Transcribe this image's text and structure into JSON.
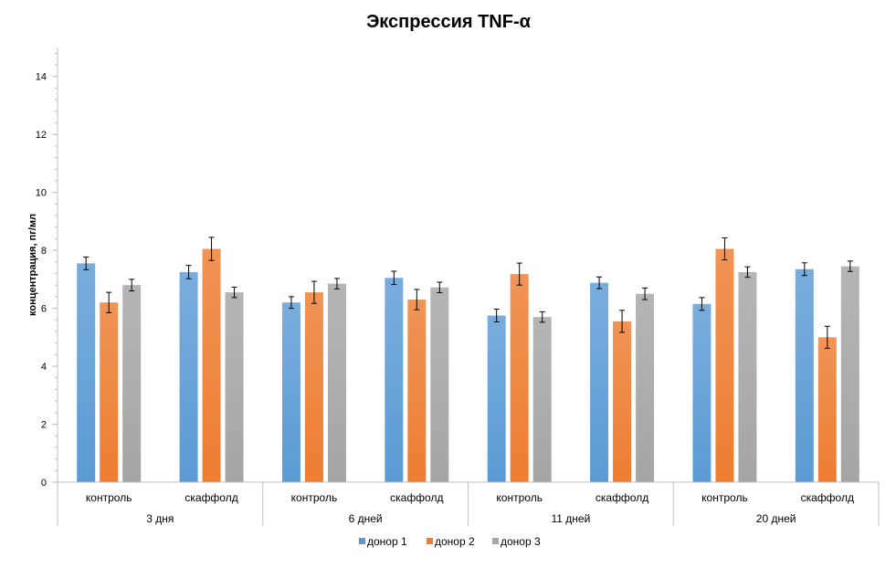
{
  "chart_data": {
    "type": "bar",
    "title": "Экспрессия TNF-α",
    "xlabel": "",
    "ylabel": "концентрация, пг/мл",
    "ylim": [
      0,
      15
    ],
    "yticks": [
      0,
      2,
      4,
      6,
      8,
      10,
      12,
      14
    ],
    "groups": [
      "3 дня",
      "6 дней",
      "11 дней",
      "20 дней"
    ],
    "categories": [
      "контроль",
      "скаффолд",
      "контроль",
      "скаффолд",
      "контроль",
      "скаффолд",
      "контроль",
      "скаффолд"
    ],
    "series": [
      {
        "name": "донор 1",
        "color": "#5b9bd5",
        "values": [
          7.55,
          7.25,
          6.2,
          7.05,
          5.75,
          6.88,
          6.15,
          7.35
        ],
        "errors": [
          0.22,
          0.23,
          0.2,
          0.23,
          0.22,
          0.2,
          0.22,
          0.22
        ]
      },
      {
        "name": "донор 2",
        "color": "#ed7d31",
        "values": [
          6.2,
          8.05,
          6.55,
          6.3,
          7.18,
          5.55,
          8.05,
          5.0
        ],
        "errors": [
          0.35,
          0.4,
          0.38,
          0.35,
          0.38,
          0.38,
          0.38,
          0.38
        ]
      },
      {
        "name": "донор 3",
        "color": "#a5a5a5",
        "values": [
          6.8,
          6.55,
          6.85,
          6.72,
          5.7,
          6.5,
          7.25,
          7.45
        ],
        "errors": [
          0.2,
          0.18,
          0.18,
          0.18,
          0.18,
          0.2,
          0.18,
          0.18
        ]
      }
    ],
    "grid": false,
    "legend_position": "bottom"
  }
}
